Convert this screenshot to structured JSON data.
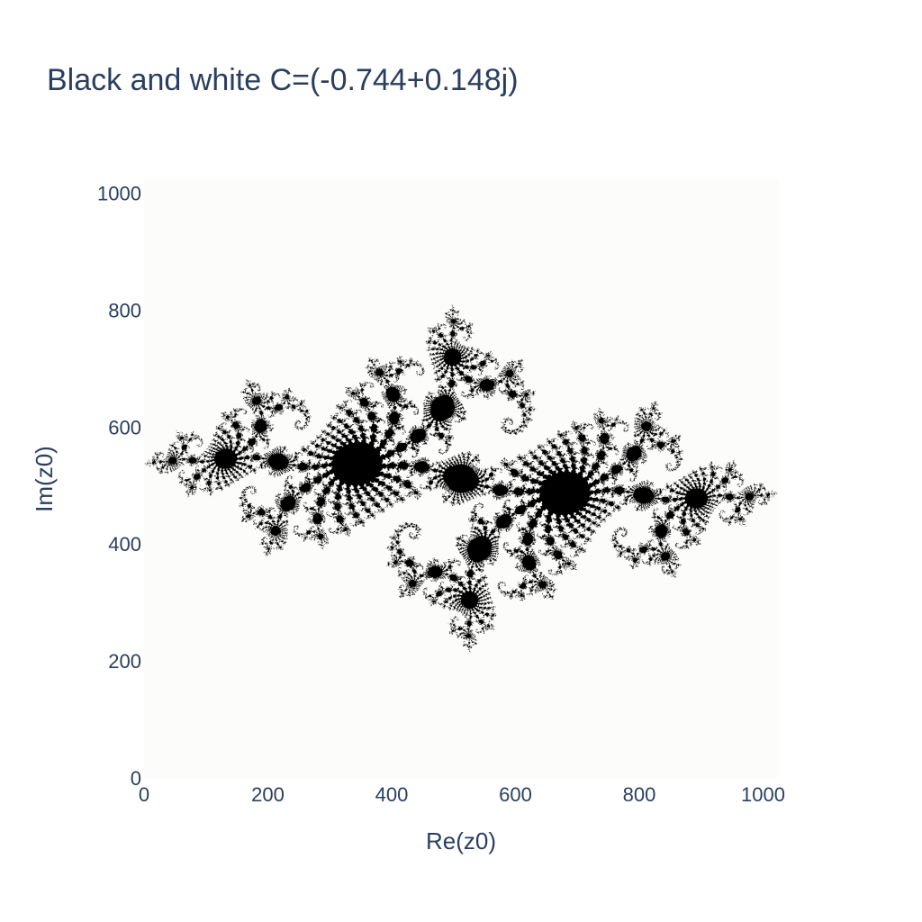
{
  "chart_data": {
    "type": "heatmap",
    "title": "Black and white C=(-0.744+0.148j)",
    "xlabel": "Re(z0)",
    "ylabel": "Im(z0)",
    "xlim": [
      0,
      1024
    ],
    "ylim": [
      0,
      1024
    ],
    "x_ticks": [
      0,
      200,
      400,
      600,
      800,
      1000
    ],
    "y_ticks": [
      0,
      200,
      400,
      600,
      800,
      1000
    ],
    "x_tick_labels": [
      "0",
      "200",
      "400",
      "600",
      "800",
      "1000"
    ],
    "y_tick_labels": [
      "0",
      "200",
      "400",
      "600",
      "800",
      "1000"
    ],
    "c_real": -0.744,
    "c_imag": 0.148,
    "colorscale": [
      "#ffffff",
      "#000000"
    ],
    "plot_background": "#fcfcfa",
    "grid": false,
    "legend": "none"
  }
}
